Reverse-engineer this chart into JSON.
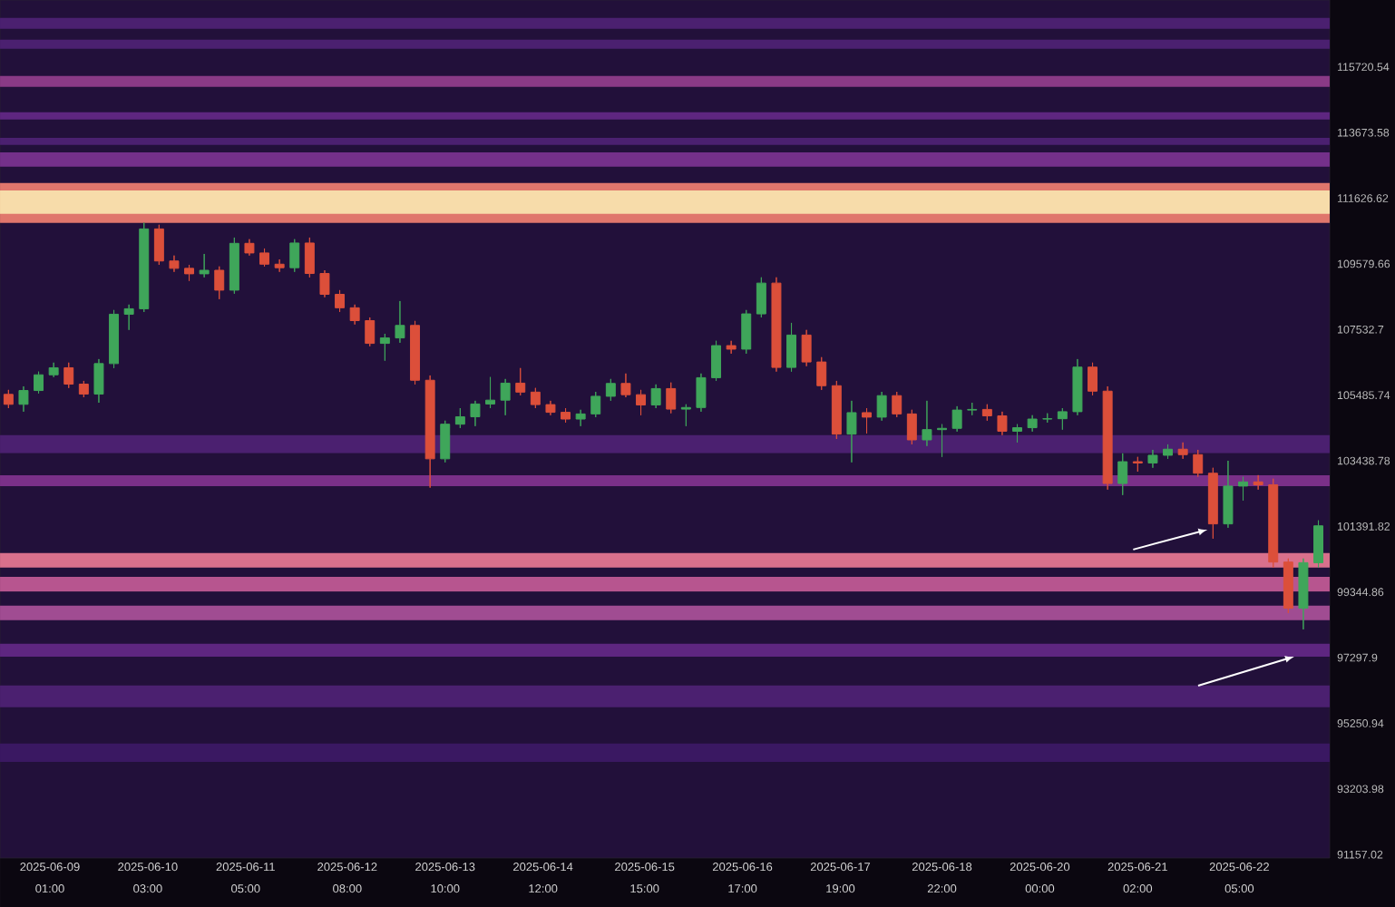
{
  "chart_data": {
    "type": "candlestick",
    "x": [
      "2025-06-08T14:00",
      "2025-06-08T18:00",
      "2025-06-08T22:00",
      "2025-06-09T02:00",
      "2025-06-09T06:00",
      "2025-06-09T10:00",
      "2025-06-09T14:00",
      "2025-06-09T18:00",
      "2025-06-09T22:00",
      "2025-06-10T02:00",
      "2025-06-10T06:00",
      "2025-06-10T10:00",
      "2025-06-10T14:00",
      "2025-06-10T18:00",
      "2025-06-10T22:00",
      "2025-06-11T02:00",
      "2025-06-11T06:00",
      "2025-06-11T10:00",
      "2025-06-11T14:00",
      "2025-06-11T18:00",
      "2025-06-11T22:00",
      "2025-06-12T02:00",
      "2025-06-12T06:00",
      "2025-06-12T10:00",
      "2025-06-12T14:00",
      "2025-06-12T18:00",
      "2025-06-12T22:00",
      "2025-06-13T02:00",
      "2025-06-13T06:00",
      "2025-06-13T10:00",
      "2025-06-13T14:00",
      "2025-06-13T18:00",
      "2025-06-13T22:00",
      "2025-06-14T02:00",
      "2025-06-14T06:00",
      "2025-06-14T10:00",
      "2025-06-14T14:00",
      "2025-06-14T18:00",
      "2025-06-14T22:00",
      "2025-06-15T02:00",
      "2025-06-15T06:00",
      "2025-06-15T10:00",
      "2025-06-15T14:00",
      "2025-06-15T18:00",
      "2025-06-15T22:00",
      "2025-06-16T02:00",
      "2025-06-16T06:00",
      "2025-06-16T10:00",
      "2025-06-16T14:00",
      "2025-06-16T18:00",
      "2025-06-16T22:00",
      "2025-06-17T02:00",
      "2025-06-17T06:00",
      "2025-06-17T10:00",
      "2025-06-17T14:00",
      "2025-06-17T18:00",
      "2025-06-17T22:00",
      "2025-06-18T02:00",
      "2025-06-18T06:00",
      "2025-06-18T10:00",
      "2025-06-18T14:00",
      "2025-06-18T18:00",
      "2025-06-18T22:00",
      "2025-06-19T02:00",
      "2025-06-19T06:00",
      "2025-06-19T10:00",
      "2025-06-19T14:00",
      "2025-06-19T18:00",
      "2025-06-19T22:00",
      "2025-06-20T02:00",
      "2025-06-20T06:00",
      "2025-06-20T10:00",
      "2025-06-20T14:00",
      "2025-06-20T18:00",
      "2025-06-20T22:00",
      "2025-06-21T02:00",
      "2025-06-21T06:00",
      "2025-06-21T10:00",
      "2025-06-21T14:00",
      "2025-06-21T18:00",
      "2025-06-21T22:00",
      "2025-06-22T02:00",
      "2025-06-22T06:00",
      "2025-06-22T10:00",
      "2025-06-22T14:00",
      "2025-06-22T18:00",
      "2025-06-22T22:00",
      "2025-06-23T02:00"
    ],
    "ohlc": [
      [
        105510,
        105650,
        105080,
        105200
      ],
      [
        105200,
        105760,
        104970,
        105630
      ],
      [
        105630,
        106220,
        105540,
        106120
      ],
      [
        106120,
        106500,
        106050,
        106340
      ],
      [
        106340,
        106500,
        105710,
        105830
      ],
      [
        105830,
        105930,
        105420,
        105520
      ],
      [
        105520,
        106610,
        105250,
        106470
      ],
      [
        106470,
        108140,
        106330,
        108010
      ],
      [
        108010,
        108310,
        107520,
        108180
      ],
      [
        108180,
        110860,
        108080,
        110670
      ],
      [
        110670,
        110800,
        109550,
        109670
      ],
      [
        109670,
        109840,
        109330,
        109440
      ],
      [
        109440,
        109550,
        109050,
        109270
      ],
      [
        109270,
        109890,
        109160,
        109380
      ],
      [
        109380,
        109500,
        108480,
        108760
      ],
      [
        108760,
        110400,
        108650,
        110220
      ],
      [
        110220,
        110350,
        109840,
        109920
      ],
      [
        109920,
        110060,
        109500,
        109570
      ],
      [
        109570,
        109720,
        109330,
        109460
      ],
      [
        109460,
        110350,
        109330,
        110230
      ],
      [
        110230,
        110400,
        109160,
        109280
      ],
      [
        109280,
        109380,
        108540,
        108630
      ],
      [
        108630,
        108760,
        108080,
        108210
      ],
      [
        108210,
        108310,
        107690,
        107810
      ],
      [
        107810,
        107910,
        107010,
        107100
      ],
      [
        107100,
        107400,
        106560,
        107270
      ],
      [
        107270,
        108420,
        107120,
        107660
      ],
      [
        107660,
        107800,
        105820,
        105950
      ],
      [
        105950,
        106100,
        102600,
        103500
      ],
      [
        103500,
        104690,
        103390,
        104580
      ],
      [
        104580,
        105080,
        104460,
        104810
      ],
      [
        104810,
        105310,
        104520,
        105210
      ],
      [
        105210,
        106050,
        105080,
        105330
      ],
      [
        105330,
        105990,
        104860,
        105860
      ],
      [
        105860,
        106330,
        105480,
        105580
      ],
      [
        105580,
        105710,
        105080,
        105190
      ],
      [
        105190,
        105310,
        104860,
        104950
      ],
      [
        104950,
        105080,
        104630,
        104740
      ],
      [
        104740,
        105030,
        104520,
        104900
      ],
      [
        104900,
        105590,
        104800,
        105450
      ],
      [
        105450,
        105990,
        105310,
        105850
      ],
      [
        105850,
        106160,
        105420,
        105500
      ],
      [
        105500,
        105650,
        104860,
        105180
      ],
      [
        105180,
        105820,
        105080,
        105690
      ],
      [
        105690,
        105880,
        104920,
        105050
      ],
      [
        105050,
        105200,
        104520,
        105100
      ],
      [
        105100,
        106160,
        104970,
        106030
      ],
      [
        106030,
        107180,
        105930,
        107030
      ],
      [
        107030,
        107180,
        106780,
        106920
      ],
      [
        106920,
        108140,
        106780,
        108020
      ],
      [
        108020,
        109160,
        107910,
        108980
      ],
      [
        108980,
        109160,
        106220,
        106350
      ],
      [
        106350,
        107740,
        106220,
        107360
      ],
      [
        107360,
        107520,
        106390,
        106520
      ],
      [
        106520,
        106670,
        105650,
        105780
      ],
      [
        105780,
        105930,
        104120,
        104270
      ],
      [
        104270,
        105310,
        103390,
        104940
      ],
      [
        104940,
        105080,
        104290,
        104800
      ],
      [
        104800,
        105590,
        104690,
        105470
      ],
      [
        105470,
        105590,
        104800,
        104900
      ],
      [
        104900,
        105030,
        103950,
        104090
      ],
      [
        104090,
        105310,
        103900,
        104410
      ],
      [
        104410,
        104580,
        103560,
        104450
      ],
      [
        104450,
        105140,
        104350,
        105020
      ],
      [
        105020,
        105250,
        104860,
        105040
      ],
      [
        105040,
        105200,
        104690,
        104840
      ],
      [
        104840,
        104970,
        104240,
        104360
      ],
      [
        104360,
        104580,
        104010,
        104470
      ],
      [
        104470,
        104860,
        104350,
        104740
      ],
      [
        104740,
        104920,
        104630,
        104750
      ],
      [
        104750,
        105080,
        104410,
        104970
      ],
      [
        104970,
        106610,
        104860,
        106360
      ],
      [
        106360,
        106500,
        105480,
        105610
      ],
      [
        105610,
        105760,
        102540,
        102730
      ],
      [
        102730,
        103670,
        102370,
        103410
      ],
      [
        103410,
        103560,
        103100,
        103370
      ],
      [
        103370,
        103780,
        103220,
        103610
      ],
      [
        103610,
        103950,
        103500,
        103800
      ],
      [
        103800,
        104010,
        103500,
        103630
      ],
      [
        103630,
        103780,
        102940,
        103050
      ],
      [
        103050,
        103220,
        101010,
        101470
      ],
      [
        101470,
        103440,
        101350,
        102650
      ],
      [
        102650,
        102940,
        102200,
        102780
      ],
      [
        102780,
        102990,
        102540,
        102690
      ],
      [
        102690,
        102880,
        100110,
        100280
      ],
      [
        100280,
        100390,
        98690,
        98840
      ],
      [
        98840,
        100390,
        98180,
        100260
      ],
      [
        100260,
        101580,
        100110,
        101410
      ]
    ],
    "colors": [
      "#dc4f3a",
      "#3fa65a",
      "#3fa65a",
      "#3fa65a",
      "#dc4f3a",
      "#dc4f3a",
      "#3fa65a",
      "#3fa65a",
      "#3fa65a",
      "#3fa65a",
      "#dc4f3a",
      "#dc4f3a",
      "#dc4f3a",
      "#3fa65a",
      "#dc4f3a",
      "#3fa65a",
      "#dc4f3a",
      "#dc4f3a",
      "#dc4f3a",
      "#3fa65a",
      "#dc4f3a",
      "#dc4f3a",
      "#dc4f3a",
      "#dc4f3a",
      "#dc4f3a",
      "#3fa65a",
      "#3fa65a",
      "#dc4f3a",
      "#dc4f3a",
      "#3fa65a",
      "#3fa65a",
      "#3fa65a",
      "#3fa65a",
      "#3fa65a",
      "#dc4f3a",
      "#dc4f3a",
      "#dc4f3a",
      "#dc4f3a",
      "#3fa65a",
      "#3fa65a",
      "#3fa65a",
      "#dc4f3a",
      "#dc4f3a",
      "#3fa65a",
      "#dc4f3a",
      "#3fa65a",
      "#3fa65a",
      "#3fa65a",
      "#dc4f3a",
      "#3fa65a",
      "#3fa65a",
      "#dc4f3a",
      "#3fa65a",
      "#dc4f3a",
      "#dc4f3a",
      "#dc4f3a",
      "#3fa65a",
      "#dc4f3a",
      "#3fa65a",
      "#dc4f3a",
      "#dc4f3a",
      "#3fa65a",
      "#3fa65a",
      "#3fa65a",
      "#3fa65a",
      "#dc4f3a",
      "#dc4f3a",
      "#3fa65a",
      "#3fa65a",
      "#3fa65a",
      "#3fa65a",
      "#3fa65a",
      "#dc4f3a",
      "#dc4f3a",
      "#3fa65a",
      "#dc4f3a",
      "#3fa65a",
      "#3fa65a",
      "#dc4f3a",
      "#dc4f3a",
      "#dc4f3a",
      "#3fa65a",
      "#3fa65a",
      "#dc4f3a",
      "#dc4f3a",
      "#dc4f3a",
      "#3fa65a",
      "#3fa65a"
    ],
    "xlim": [
      "2025-06-08T11:45",
      "2025-06-23T05:00"
    ],
    "xticks": [
      {
        "value": "2025-06-09T01:00",
        "label": "2025-06-09 01:00"
      },
      {
        "value": "2025-06-10T03:00",
        "label": "2025-06-10 03:00"
      },
      {
        "value": "2025-06-11T05:00",
        "label": "2025-06-11 05:00"
      },
      {
        "value": "2025-06-12T08:00",
        "label": "2025-06-12 08:00"
      },
      {
        "value": "2025-06-13T10:00",
        "label": "2025-06-13 10:00"
      },
      {
        "value": "2025-06-14T12:00",
        "label": "2025-06-14 12:00"
      },
      {
        "value": "2025-06-15T15:00",
        "label": "2025-06-15 15:00"
      },
      {
        "value": "2025-06-16T17:00",
        "label": "2025-06-16 17:00"
      },
      {
        "value": "2025-06-17T19:00",
        "label": "2025-06-17 19:00"
      },
      {
        "value": "2025-06-18T22:00",
        "label": "2025-06-18 22:00"
      },
      {
        "value": "2025-06-20T00:00",
        "label": "2025-06-20 00:00"
      },
      {
        "value": "2025-06-21T02:00",
        "label": "2025-06-21 02:00"
      },
      {
        "value": "2025-06-22T05:00",
        "label": "2025-06-22 05:00"
      }
    ],
    "ylim": [
      91050,
      117810
    ],
    "yticks": [
      115720.54,
      113673.58,
      111626.62,
      109579.66,
      107532.7,
      105485.74,
      103438.78,
      101391.82,
      99344.86,
      97297.9,
      95250.94,
      93203.98,
      91157.02
    ],
    "bands": [
      {
        "axis": "y",
        "from": 116910,
        "to": 117250,
        "color": "#4b2070"
      },
      {
        "axis": "y",
        "from": 116290,
        "to": 116570,
        "color": "#4b2070"
      },
      {
        "axis": "y",
        "from": 115100,
        "to": 115440,
        "color": "#8a3a86"
      },
      {
        "axis": "y",
        "from": 114080,
        "to": 114310,
        "color": "#5e2680"
      },
      {
        "axis": "y",
        "from": 113290,
        "to": 113510,
        "color": "#4b2070"
      },
      {
        "axis": "y",
        "from": 112610,
        "to": 113060,
        "color": "#74308a"
      },
      {
        "axis": "y",
        "from": 110860,
        "to": 112100,
        "color": "#e0766c"
      },
      {
        "axis": "y",
        "from": 111140,
        "to": 111870,
        "color": "#f7dcaa"
      },
      {
        "axis": "y",
        "from": 103670,
        "to": 104240,
        "color": "#4b2070"
      },
      {
        "axis": "y",
        "from": 102650,
        "to": 102990,
        "color": "#7a3088"
      },
      {
        "axis": "y",
        "from": 100110,
        "to": 100560,
        "color": "#d9708c"
      },
      {
        "axis": "y",
        "from": 99360,
        "to": 99820,
        "color": "#b7558f"
      },
      {
        "axis": "y",
        "from": 98470,
        "to": 98920,
        "color": "#a04c92"
      },
      {
        "axis": "y",
        "from": 97330,
        "to": 97730,
        "color": "#5e2680"
      },
      {
        "axis": "y",
        "from": 95750,
        "to": 96430,
        "color": "#4b2070"
      },
      {
        "axis": "y",
        "from": 94050,
        "to": 94620,
        "color": "#3a1862"
      }
    ]
  }
}
